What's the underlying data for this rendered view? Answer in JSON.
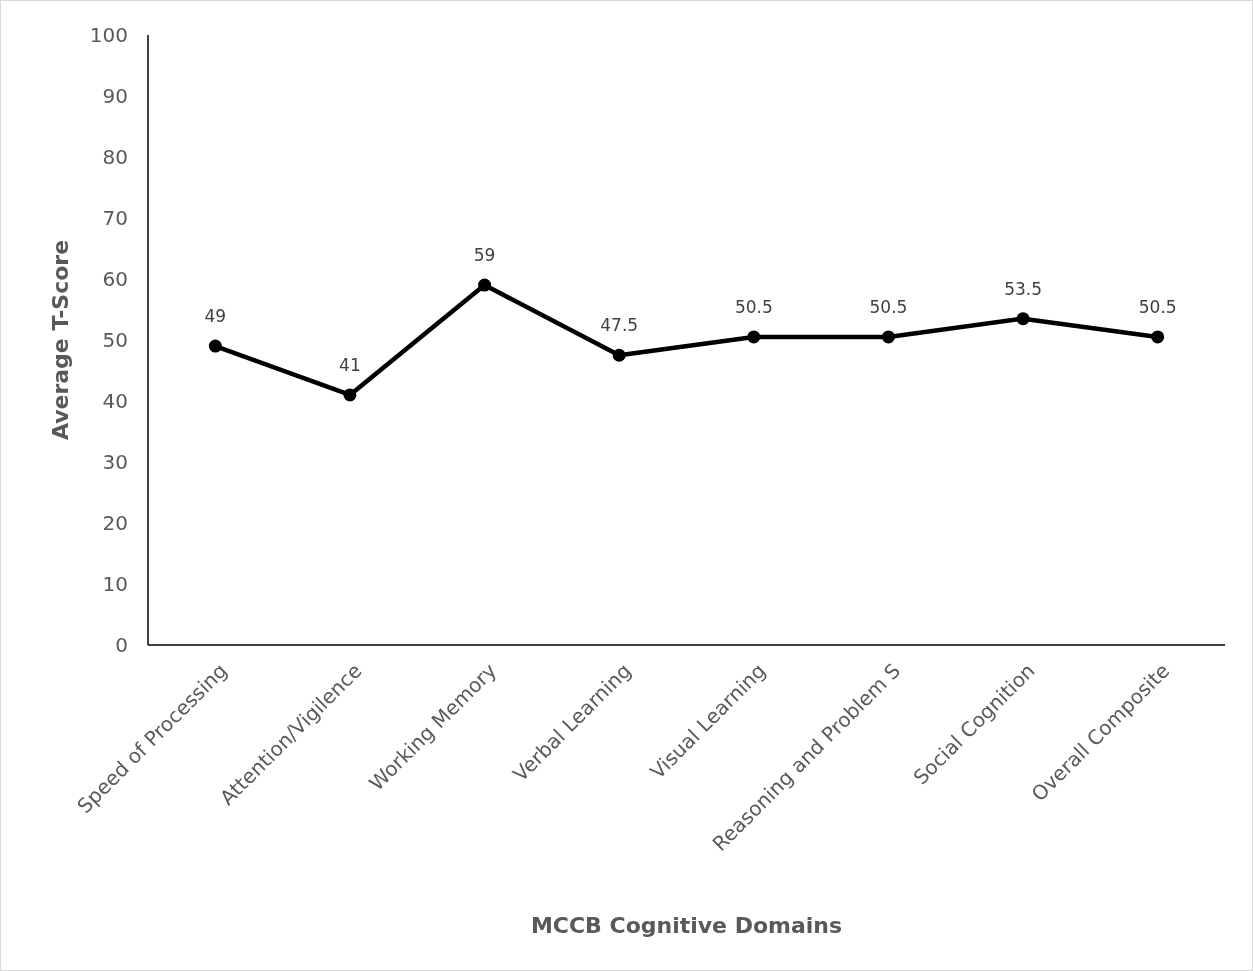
{
  "chart_data": {
    "type": "line",
    "xlabel": "MCCB Cognitive Domains",
    "ylabel": "Average T-Score",
    "categories": [
      "Speed of Processing",
      "Attention/Vigilence",
      "Working Memory",
      "Verbal Learning",
      "Visual Learning",
      "Reasoning and Problem S",
      "Social Cognition",
      "Overall Composite"
    ],
    "series": [
      {
        "color": "#000000",
        "values": [
          49,
          41,
          59,
          47.5,
          50.5,
          50.5,
          53.5,
          50.5
        ]
      }
    ],
    "ylim": [
      0,
      100
    ],
    "yticks": [
      0,
      10,
      20,
      30,
      40,
      50,
      60,
      70,
      80,
      90,
      100
    ],
    "grid": false,
    "marker": "circle",
    "line_style": "solid",
    "data_labels": true
  }
}
